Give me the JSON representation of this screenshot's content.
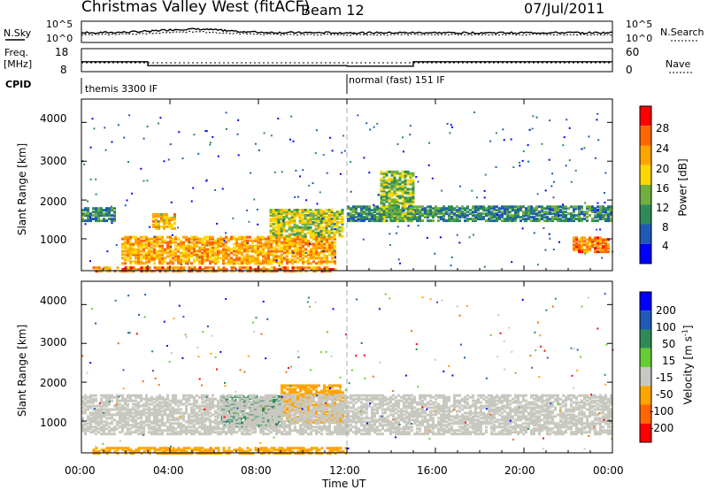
{
  "header": {
    "station": "Christmas Valley West (fitACF)",
    "beam": "Beam 12",
    "date": "07/Jul/2011"
  },
  "sky_panel": {
    "left_label": "N.Sky",
    "left_ticks": [
      "10^5",
      "10^0"
    ],
    "right_label": "N.Search",
    "right_ticks": [
      "10^5",
      "10^0"
    ]
  },
  "freq_panel": {
    "left_label_1": "Freq.",
    "left_label_2": "[MHz]",
    "left_ticks": [
      "18",
      "8"
    ],
    "right_ticks": [
      "60",
      "0"
    ],
    "right_label": "Nave"
  },
  "cpid": {
    "label": "CPID",
    "segments": [
      "themis 3300 IF",
      "normal (fast) 151 IF"
    ]
  },
  "x_axis": {
    "label": "Time UT",
    "ticks": [
      "00:00",
      "04:00",
      "08:00",
      "12:00",
      "16:00",
      "20:00",
      "00:00"
    ]
  },
  "power_panel": {
    "ylabel": "Slant Range [km]",
    "y_ticks": [
      "4000",
      "3000",
      "2000",
      "1000"
    ],
    "colorbar_label": "Power [dB]",
    "colorbar_ticks": [
      "28",
      "24",
      "20",
      "16",
      "12",
      "8",
      "4"
    ],
    "colors": [
      "#0000ff",
      "#1f5ab4",
      "#2e8b57",
      "#6fae3f",
      "#ffd700",
      "#ffa500",
      "#ff6600",
      "#ff0000"
    ]
  },
  "velocity_panel": {
    "ylabel": "Slant Range [km]",
    "y_ticks": [
      "4000",
      "3000",
      "2000",
      "1000"
    ],
    "colorbar_label": "Velocity [m s",
    "colorbar_label_sup": "-1",
    "colorbar_label_end": "]",
    "colorbar_ticks": [
      "200",
      "100",
      "50",
      "15",
      "-15",
      "-50",
      "-100",
      "-200"
    ],
    "colors": [
      "#0000ff",
      "#1f5ab4",
      "#2e8b57",
      "#66cc33",
      "#c8c8c0",
      "#ffa500",
      "#ff6600",
      "#ff0000"
    ],
    "ground_scatter_color": "#c8c8c0"
  },
  "chart_data": {
    "type": "heatmap",
    "x_range_hours": [
      0,
      24
    ],
    "y_range_km": [
      180,
      4600
    ],
    "frequency_steps_mhz": [
      {
        "start_h": 0,
        "end_h": 3,
        "value": 12.3
      },
      {
        "start_h": 3,
        "end_h": 12,
        "value": 10.6
      },
      {
        "start_h": 12,
        "end_h": 15,
        "value": 10.4
      },
      {
        "start_h": 15,
        "end_h": 24,
        "value": 12.3
      }
    ],
    "cpid_change_hour": 12,
    "power_regions": [
      {
        "t0": 1.8,
        "t1": 11.5,
        "r0": 400,
        "r1": 1100,
        "level": 24
      },
      {
        "t0": 3.2,
        "t1": 4.2,
        "r0": 1300,
        "r1": 1700,
        "level": 22
      },
      {
        "t0": 0.0,
        "t1": 1.5,
        "r0": 1500,
        "r1": 1850,
        "level": 12
      },
      {
        "t0": 8.5,
        "t1": 11.8,
        "r0": 1100,
        "r1": 1800,
        "level": 18
      },
      {
        "t0": 12.0,
        "t1": 24.0,
        "r0": 1500,
        "r1": 1900,
        "level": 12
      },
      {
        "t0": 13.5,
        "t1": 15.0,
        "r0": 1500,
        "r1": 2800,
        "level": 16
      },
      {
        "t0": 22.2,
        "t1": 23.8,
        "r0": 700,
        "r1": 1100,
        "level": 26
      },
      {
        "t0": 0.5,
        "t1": 11.5,
        "r0": 200,
        "r1": 320,
        "level": 26
      }
    ],
    "velocity_regions": [
      {
        "t0": 6.3,
        "t1": 9.0,
        "r0": 900,
        "r1": 1700,
        "velocity": 40
      },
      {
        "t0": 9.0,
        "t1": 11.8,
        "r0": 1000,
        "r1": 1950,
        "velocity": -40
      },
      {
        "t0": 0.5,
        "t1": 12.0,
        "r0": 200,
        "r1": 350,
        "velocity": -30
      },
      {
        "t0": 0.0,
        "t1": 24.0,
        "r0": 700,
        "r1": 1700,
        "velocity": 0
      }
    ]
  }
}
